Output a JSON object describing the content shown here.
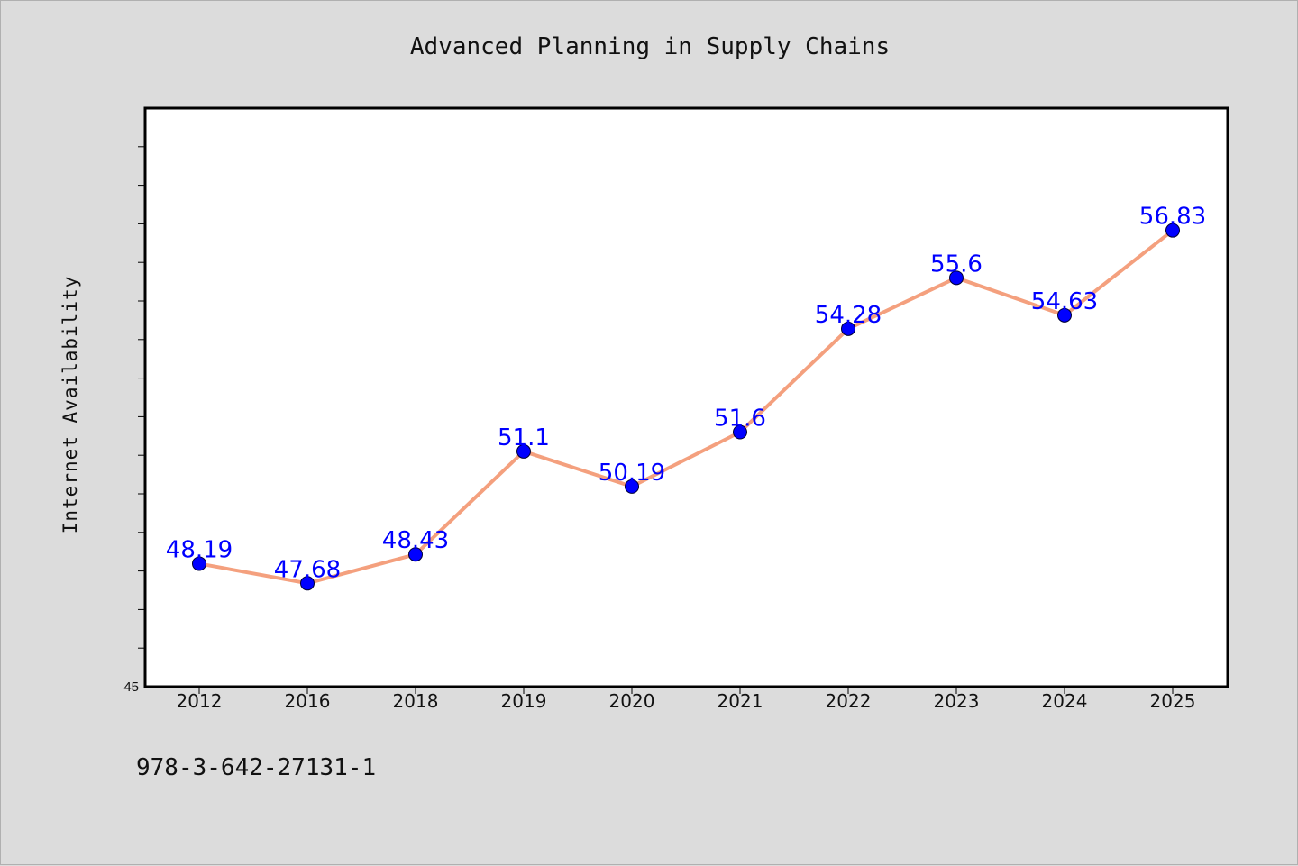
{
  "chart_data": {
    "type": "line",
    "title": "Advanced Planning in Supply Chains",
    "xlabel": "",
    "ylabel": "Internet Availability",
    "categories": [
      "2012",
      "2016",
      "2018",
      "2019",
      "2020",
      "2021",
      "2022",
      "2023",
      "2024",
      "2025"
    ],
    "series": [
      {
        "values": [
          48.19,
          47.68,
          48.43,
          51.1,
          50.19,
          51.6,
          54.28,
          55.6,
          54.63,
          56.83
        ]
      }
    ],
    "data_labels": [
      "48.19",
      "47.68",
      "48.43",
      "51.1",
      "50.19",
      "51.6",
      "54.28",
      "55.6",
      "54.63",
      "56.83"
    ],
    "y_tick_label": "45",
    "ylim": [
      45,
      60
    ],
    "grid": false,
    "colors": {
      "line": "#f4a07e",
      "marker": "#0000ff",
      "label": "#0000ff",
      "frame": "#000000",
      "plot_bg": "#ffffff"
    }
  },
  "footer": {
    "code": "978-3-642-27131-1"
  }
}
